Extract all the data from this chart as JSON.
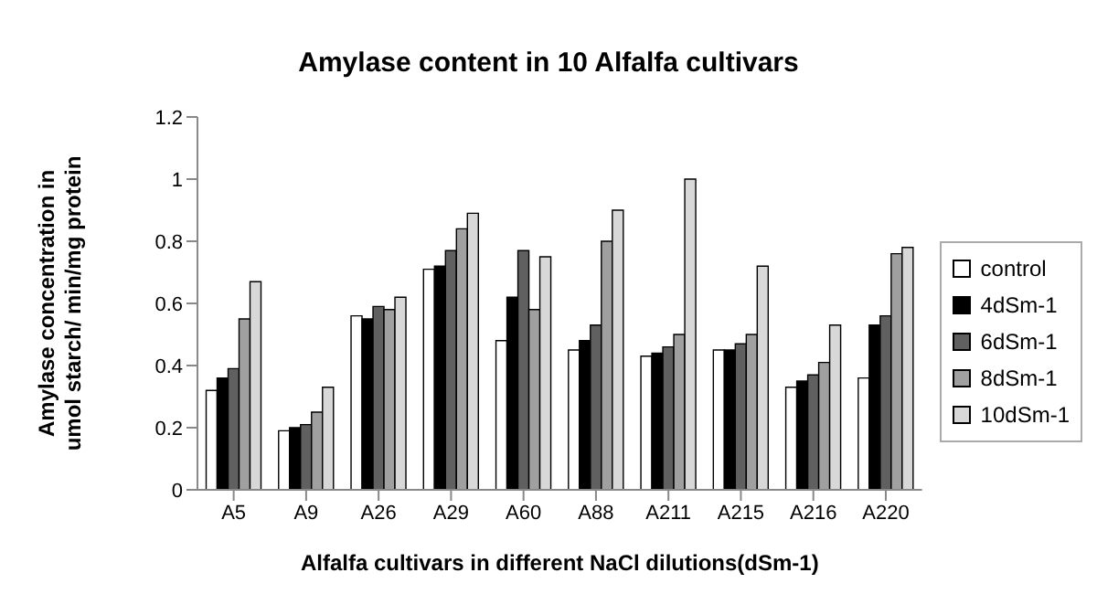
{
  "chart_data": {
    "type": "bar",
    "title": "Amylase content in 10 Alfalfa cultivars",
    "xlabel": "Alfalfa cultivars in different NaCl dilutions(dSm-1)",
    "ylabel": "Amylase concentration in umol starch/ min/mg protein",
    "categories": [
      "A5",
      "A9",
      "A26",
      "A29",
      "A60",
      "A88",
      "A211",
      "A215",
      "A216",
      "A220"
    ],
    "series": [
      {
        "name": "control",
        "color": "#ffffff",
        "values": [
          0.32,
          0.19,
          0.56,
          0.71,
          0.48,
          0.45,
          0.43,
          0.45,
          0.33,
          0.36
        ]
      },
      {
        "name": "4dSm-1",
        "color": "#000000",
        "values": [
          0.36,
          0.2,
          0.55,
          0.72,
          0.62,
          0.48,
          0.44,
          0.45,
          0.35,
          0.53
        ]
      },
      {
        "name": "6dSm-1",
        "color": "#606060",
        "values": [
          0.39,
          0.21,
          0.59,
          0.77,
          0.77,
          0.53,
          0.46,
          0.47,
          0.37,
          0.56
        ]
      },
      {
        "name": "8dSm-1",
        "color": "#a0a0a0",
        "values": [
          0.55,
          0.25,
          0.58,
          0.84,
          0.58,
          0.8,
          0.5,
          0.5,
          0.41,
          0.76
        ]
      },
      {
        "name": "10dSm-1",
        "color": "#d8d8d8",
        "values": [
          0.67,
          0.33,
          0.62,
          0.89,
          0.75,
          0.9,
          1.0,
          0.72,
          0.53,
          0.78
        ]
      }
    ],
    "ylim": [
      0,
      1.2
    ],
    "yticks": [
      0,
      0.2,
      0.4,
      0.6,
      0.8,
      1,
      1.2
    ],
    "grid": false,
    "legend": "right"
  }
}
